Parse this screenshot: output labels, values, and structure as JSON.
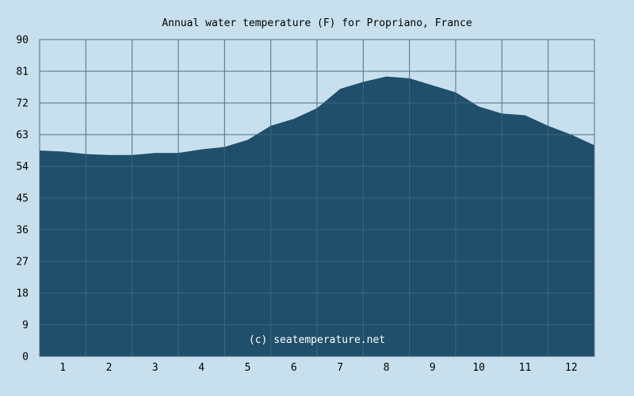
{
  "chart_data": {
    "type": "area",
    "title": "Annual water temperature (F) for Propriano, France",
    "credit": "(c) seatemperature.net",
    "xlabel": "",
    "ylabel": "",
    "ylim": [
      0,
      90
    ],
    "y_ticks": [
      "0",
      "9",
      "18",
      "27",
      "36",
      "45",
      "54",
      "63",
      "72",
      "81",
      "90"
    ],
    "x_ticks": [
      "1",
      "2",
      "3",
      "4",
      "5",
      "6",
      "7",
      "8",
      "9",
      "10",
      "11",
      "12"
    ],
    "x_range_months": [
      0.5,
      12.5
    ],
    "grid": true,
    "legend": "none",
    "series": [
      {
        "x": [
          0.5,
          1.0,
          1.5,
          2.0,
          2.5,
          3.0,
          3.5,
          4.0,
          4.5,
          5.0,
          5.5,
          6.0,
          6.5,
          7.0,
          7.5,
          8.0,
          8.5,
          9.0,
          9.5,
          10.0,
          10.5,
          11.0,
          11.5,
          12.0,
          12.5
        ],
        "values": [
          58.5,
          58.2,
          57.5,
          57.2,
          57.2,
          57.8,
          57.8,
          58.8,
          59.5,
          61.5,
          65.5,
          67.5,
          70.5,
          76.0,
          78.0,
          79.5,
          79.0,
          77.0,
          75.0,
          71.0,
          69.0,
          68.5,
          65.5,
          63.0,
          60.0
        ]
      }
    ],
    "colors": {
      "background": "#c8e0ee",
      "plot_background": "#c8e0ee",
      "fill": "#1f4f6b",
      "grid": "#4a6f86",
      "grid_over_fill": "#4d7187",
      "axis": "#000000"
    }
  }
}
